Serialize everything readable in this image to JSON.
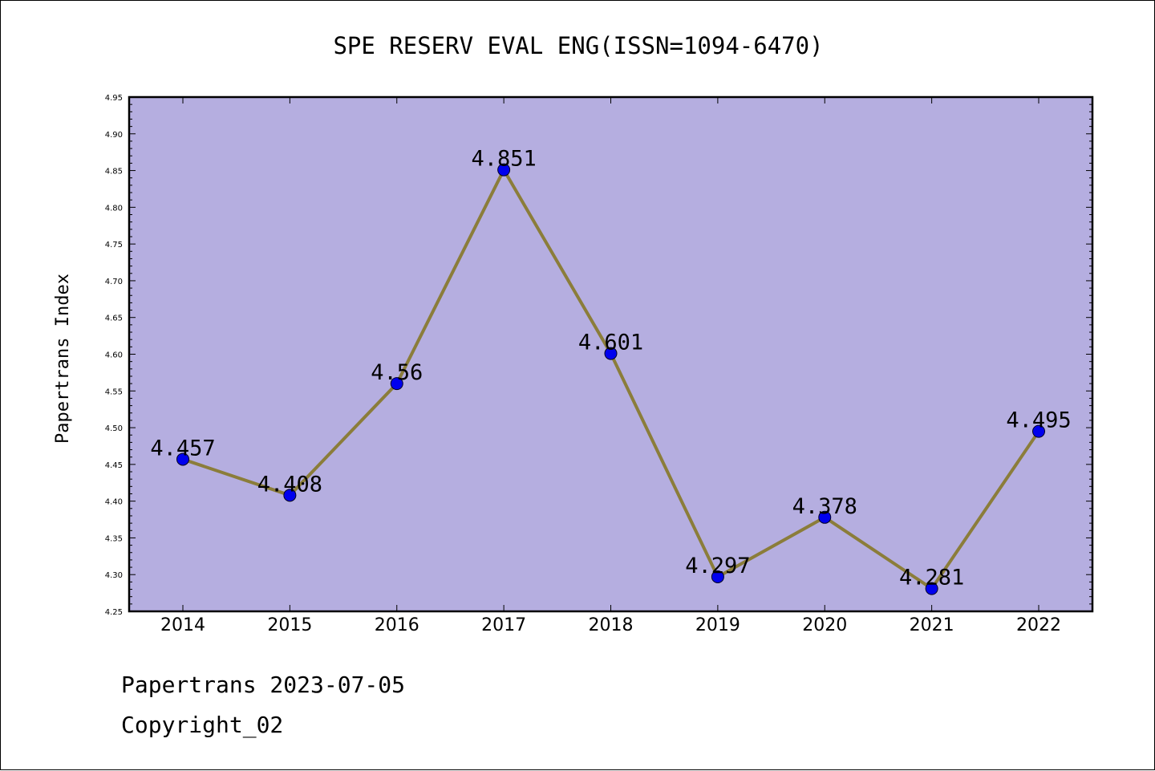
{
  "footer": {
    "source": "Papertrans 2023-07-05",
    "copyright": "Copyright_02"
  },
  "colors": {
    "plot_background": "#b5aee0",
    "line": "#8b7d3a",
    "marker": "#0000ee"
  },
  "chart_data": {
    "type": "line",
    "title": "SPE RESERV EVAL ENG(ISSN=1094-6470)",
    "xlabel": "",
    "ylabel": "Papertrans Index",
    "categories": [
      "2014",
      "2015",
      "2016",
      "2017",
      "2018",
      "2019",
      "2020",
      "2021",
      "2022"
    ],
    "values": [
      4.457,
      4.408,
      4.56,
      4.851,
      4.601,
      4.297,
      4.378,
      4.281,
      4.495
    ],
    "data_labels": [
      "4.457",
      "4.408",
      "4.56",
      "4.851",
      "4.601",
      "4.297",
      "4.378",
      "4.281",
      "4.495"
    ],
    "ylim": [
      4.25,
      4.95
    ],
    "yticks": [
      "4.25",
      "4.30",
      "4.35",
      "4.40",
      "4.45",
      "4.50",
      "4.55",
      "4.60",
      "4.65",
      "4.70",
      "4.75",
      "4.80",
      "4.85",
      "4.90",
      "4.95"
    ],
    "grid": false,
    "legend": "none"
  }
}
